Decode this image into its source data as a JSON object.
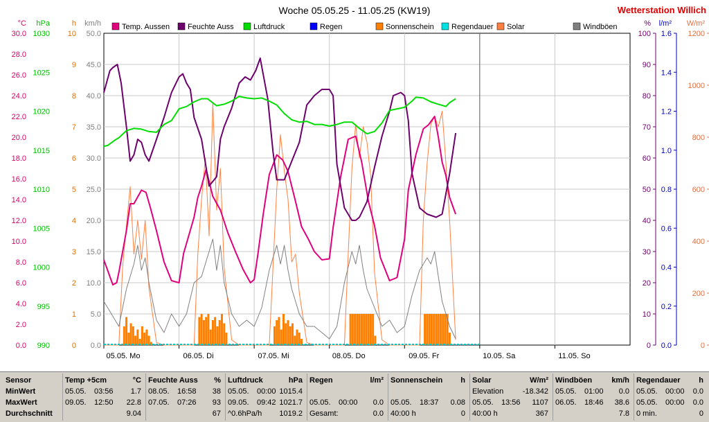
{
  "header": {
    "title": "Woche 05.05.25 - 11.05.25 (KW19)",
    "station": "Wetterstation Willich",
    "station_color": "#e00000"
  },
  "chart_data": {
    "type": "line",
    "x_ticks": [
      "05.05. Mo",
      "06.05. Di",
      "07.05. Mi",
      "08.05. Do",
      "09.05. Fr",
      "10.05. Sa",
      "11.05. So"
    ],
    "x_range_days": [
      0,
      7
    ],
    "data_end_day": 5,
    "axes": [
      {
        "unit": "°C",
        "side": "left",
        "color": "#d8006c",
        "min": 0,
        "max": 30,
        "ticks": [
          "0.0",
          "2.0",
          "4.0",
          "6.0",
          "8.0",
          "10.0",
          "12.0",
          "14.0",
          "16.0",
          "18.0",
          "20.0",
          "22.0",
          "24.0",
          "26.0",
          "28.0",
          "30.0"
        ]
      },
      {
        "unit": "hPa",
        "side": "left",
        "color": "#00c000",
        "min": 990,
        "max": 1030,
        "ticks": [
          "990",
          "995",
          "1000",
          "1005",
          "1010",
          "1015",
          "1020",
          "1025",
          "1030"
        ]
      },
      {
        "unit": "h",
        "side": "left",
        "color": "#e07000",
        "min": 0,
        "max": 10,
        "ticks": [
          "0",
          "1",
          "2",
          "3",
          "4",
          "5",
          "6",
          "7",
          "8",
          "9",
          "10"
        ]
      },
      {
        "unit": "km/h",
        "side": "left",
        "color": "#808080",
        "min": 0,
        "max": 50,
        "ticks": [
          "0.0",
          "5.0",
          "10.0",
          "15.0",
          "20.0",
          "25.0",
          "30.0",
          "35.0",
          "40.0",
          "45.0",
          "50.0"
        ]
      },
      {
        "unit": "%",
        "side": "right",
        "color": "#6c006c",
        "min": 0,
        "max": 100,
        "ticks": [
          "0",
          "10",
          "20",
          "30",
          "40",
          "50",
          "60",
          "70",
          "80",
          "90",
          "100"
        ]
      },
      {
        "unit": "l/m²",
        "side": "right",
        "color": "#0000c0",
        "min": 0,
        "max": 1.6,
        "ticks": [
          "0.0",
          "0.2",
          "0.4",
          "0.6",
          "0.8",
          "1.0",
          "1.2",
          "1.4",
          "1.6"
        ]
      },
      {
        "unit": "W/m²",
        "side": "right",
        "color": "#e07040",
        "min": 0,
        "max": 1200,
        "ticks": [
          "0",
          "200",
          "400",
          "600",
          "800",
          "1000",
          "1200"
        ]
      }
    ],
    "legend": [
      {
        "name": "Temp. Aussen",
        "color": "#e0007c"
      },
      {
        "name": "Feuchte Auss",
        "color": "#6c006c"
      },
      {
        "name": "Luftdruck",
        "color": "#00dd00"
      },
      {
        "name": "Regen",
        "color": "#0000ff"
      },
      {
        "name": "Sonnenschein",
        "color": "#ff8000"
      },
      {
        "name": "Regendauer",
        "color": "#00e0e0"
      },
      {
        "name": "Solar",
        "color": "#ff8040"
      },
      {
        "name": "Windböen",
        "color": "#808080"
      }
    ],
    "series": [
      {
        "name": "Temp. Aussen",
        "axis": "°C",
        "color": "#e0007c",
        "x": [
          0,
          0.06,
          0.12,
          0.17,
          0.2,
          0.3,
          0.35,
          0.4,
          0.5,
          0.56,
          0.62,
          0.7,
          0.8,
          0.9,
          1.0,
          1.06,
          1.2,
          1.25,
          1.3,
          1.36,
          1.45,
          1.55,
          1.65,
          1.75,
          1.85,
          1.95,
          2.0,
          2.05,
          2.12,
          2.2,
          2.3,
          2.38,
          2.45,
          2.55,
          2.63,
          2.72,
          2.8,
          2.9,
          3.0,
          3.05,
          3.15,
          3.25,
          3.35,
          3.43,
          3.52,
          3.6,
          3.68,
          3.8,
          3.9,
          4.0,
          4.05,
          4.15,
          4.25,
          4.32,
          4.4,
          4.45,
          4.5,
          4.55,
          4.6,
          4.68
        ],
        "values": [
          8.2,
          7.0,
          5.8,
          6.0,
          7.0,
          11.0,
          13.6,
          13.6,
          14.9,
          14.7,
          13.2,
          11.0,
          8.0,
          6.2,
          6.0,
          8.8,
          12.3,
          14.2,
          15.3,
          16.9,
          14.3,
          13.0,
          10.8,
          9.0,
          7.3,
          6.0,
          6.3,
          8.8,
          12.6,
          16.4,
          18.3,
          17.8,
          16.7,
          13.8,
          11.4,
          10.2,
          9.0,
          8.2,
          8.3,
          11.3,
          16.2,
          19.8,
          20.1,
          17.6,
          13.8,
          11.5,
          8.4,
          6.2,
          6.5,
          10.2,
          14.9,
          18.3,
          20.8,
          21.2,
          22.0,
          20.0,
          17.6,
          16.3,
          14.2,
          12.6
        ]
      },
      {
        "name": "Feuchte Auss",
        "axis": "%",
        "color": "#6c006c",
        "x": [
          0,
          0.08,
          0.12,
          0.18,
          0.23,
          0.3,
          0.35,
          0.4,
          0.45,
          0.5,
          0.55,
          0.6,
          0.7,
          0.8,
          0.9,
          1.0,
          1.05,
          1.1,
          1.15,
          1.2,
          1.3,
          1.4,
          1.5,
          1.55,
          1.6,
          1.7,
          1.8,
          1.88,
          1.95,
          2.02,
          2.08,
          2.18,
          2.25,
          2.3,
          2.4,
          2.5,
          2.6,
          2.7,
          2.8,
          2.9,
          3.0,
          3.05,
          3.1,
          3.2,
          3.3,
          3.35,
          3.4,
          3.5,
          3.6,
          3.7,
          3.8,
          3.85,
          3.95,
          4.0,
          4.05,
          4.1,
          4.2,
          4.3,
          4.42,
          4.5,
          4.6,
          4.68
        ],
        "values": [
          81,
          88,
          89,
          90,
          84,
          70,
          59,
          61,
          66,
          65,
          61,
          59,
          66,
          73,
          81,
          86,
          87,
          84,
          82,
          73,
          66,
          51,
          54,
          66,
          70,
          76,
          84,
          86,
          85,
          88,
          92,
          79,
          62,
          53,
          53,
          59,
          65,
          77,
          80,
          82,
          82,
          80,
          58,
          44,
          40,
          40,
          41,
          46,
          57,
          67,
          75,
          80,
          81,
          80,
          72,
          55,
          44,
          42,
          41,
          42,
          55,
          68
        ]
      },
      {
        "name": "Luftdruck",
        "axis": "hPa",
        "color": "#00dd00",
        "x": [
          0,
          0.05,
          0.15,
          0.2,
          0.3,
          0.4,
          0.5,
          0.6,
          0.7,
          0.8,
          0.9,
          1.0,
          1.1,
          1.2,
          1.3,
          1.38,
          1.46,
          1.5,
          1.6,
          1.7,
          1.8,
          1.9,
          2.0,
          2.1,
          2.2,
          2.3,
          2.4,
          2.5,
          2.6,
          2.7,
          2.8,
          2.9,
          3.0,
          3.1,
          3.2,
          3.3,
          3.4,
          3.5,
          3.6,
          3.7,
          3.8,
          3.9,
          4.0,
          4.1,
          4.15,
          4.25,
          4.35,
          4.45,
          4.55,
          4.6,
          4.68
        ],
        "values": [
          1015.5,
          1015.6,
          1016.3,
          1016.6,
          1017.5,
          1017.8,
          1017.7,
          1017.4,
          1017.3,
          1018.3,
          1018.8,
          1020.3,
          1020.6,
          1021.2,
          1021.6,
          1021.6,
          1021.0,
          1020.7,
          1020.9,
          1021.3,
          1021.9,
          1021.7,
          1021.6,
          1021.7,
          1021.3,
          1020.8,
          1019.7,
          1018.9,
          1018.6,
          1018.7,
          1018.3,
          1018.3,
          1018.1,
          1018.3,
          1018.6,
          1018.6,
          1017.8,
          1017.1,
          1017.4,
          1018.5,
          1020.1,
          1020.3,
          1020.5,
          1021.3,
          1021.8,
          1021.7,
          1021.2,
          1020.9,
          1020.6,
          1021.1,
          1021.6
        ]
      },
      {
        "name": "Windböen",
        "axis": "km/h",
        "color": "#808080",
        "x": [
          0,
          0.1,
          0.2,
          0.3,
          0.4,
          0.45,
          0.5,
          0.55,
          0.6,
          0.7,
          0.8,
          0.9,
          1.0,
          1.1,
          1.2,
          1.3,
          1.4,
          1.45,
          1.5,
          1.55,
          1.6,
          1.7,
          1.8,
          1.9,
          2.0,
          2.1,
          2.2,
          2.3,
          2.35,
          2.4,
          2.45,
          2.5,
          2.6,
          2.7,
          2.8,
          2.9,
          3.0,
          3.1,
          3.2,
          3.3,
          3.35,
          3.4,
          3.45,
          3.5,
          3.6,
          3.7,
          3.8,
          3.9,
          4.0,
          4.1,
          4.2,
          4.3,
          4.35,
          4.4,
          4.45,
          4.5,
          4.6,
          4.68
        ],
        "values": [
          7,
          5,
          3,
          9,
          13,
          16,
          12,
          14,
          10,
          4,
          2,
          5,
          3,
          5,
          10,
          11,
          15,
          17,
          12,
          16,
          10,
          5,
          3,
          4,
          3,
          6,
          12,
          16,
          13,
          16,
          12,
          9,
          5,
          3,
          3,
          2,
          1,
          3,
          10,
          15,
          13,
          16,
          12,
          9,
          6,
          3,
          4,
          2,
          3,
          8,
          12,
          14,
          13,
          15,
          11,
          7,
          3,
          1
        ]
      }
    ],
    "sunshine": {
      "name": "Sonnenschein",
      "axis": "h",
      "color": "#ff8000",
      "x": [
        0.27,
        0.3,
        0.33,
        0.36,
        0.39,
        0.42,
        0.45,
        0.48,
        0.51,
        0.54,
        0.57,
        0.6,
        0.63,
        1.27,
        1.3,
        1.33,
        1.36,
        1.39,
        1.42,
        1.45,
        1.48,
        1.51,
        1.54,
        1.57,
        1.6,
        1.63,
        2.27,
        2.3,
        2.33,
        2.36,
        2.39,
        2.42,
        2.45,
        2.48,
        2.51,
        2.54,
        2.57,
        2.6,
        2.63,
        3.28,
        3.31,
        3.34,
        3.37,
        3.4,
        3.43,
        3.46,
        3.49,
        3.52,
        3.55,
        3.58,
        3.61,
        4.27,
        4.3,
        4.33,
        4.36,
        4.39,
        4.42,
        4.45,
        4.48,
        4.51,
        4.54,
        4.57,
        4.6
      ],
      "values": [
        0.6,
        0.9,
        0.4,
        0.7,
        0.6,
        0.3,
        0.5,
        0.2,
        0.6,
        0.4,
        0.5,
        0.3,
        0.1,
        0.9,
        1.0,
        0.8,
        0.9,
        1.0,
        0.5,
        0.8,
        0.9,
        0.6,
        0.8,
        1.0,
        0.7,
        0.4,
        0.6,
        0.8,
        0.9,
        0.5,
        1.0,
        0.7,
        0.8,
        0.6,
        0.7,
        0.3,
        0.5,
        0.4,
        0.2,
        1.0,
        1.0,
        1.0,
        1.0,
        1.0,
        1.0,
        1.0,
        1.0,
        1.0,
        1.0,
        1.0,
        0.3,
        1.0,
        1.0,
        1.0,
        1.0,
        1.0,
        1.0,
        1.0,
        1.0,
        1.0,
        1.0,
        1.0,
        0.4
      ]
    },
    "solar": {
      "name": "Solar",
      "axis": "W/m²",
      "color": "#ff8040",
      "x": [
        0,
        0.2,
        0.25,
        0.3,
        0.35,
        0.4,
        0.45,
        0.5,
        0.55,
        0.6,
        0.7,
        0.8,
        1.0,
        1.2,
        1.25,
        1.3,
        1.35,
        1.4,
        1.45,
        1.5,
        1.55,
        1.6,
        1.7,
        1.8,
        2.0,
        2.2,
        2.25,
        2.3,
        2.35,
        2.4,
        2.45,
        2.5,
        2.55,
        2.6,
        2.7,
        2.8,
        3.0,
        3.2,
        3.25,
        3.3,
        3.35,
        3.4,
        3.45,
        3.5,
        3.55,
        3.6,
        3.7,
        3.8,
        4.0,
        4.2,
        4.25,
        4.3,
        4.35,
        4.4,
        4.45,
        4.5,
        4.55,
        4.6,
        4.68
      ],
      "values": [
        0,
        0,
        300,
        460,
        610,
        350,
        480,
        330,
        480,
        220,
        10,
        0,
        0,
        0,
        350,
        560,
        720,
        420,
        930,
        520,
        680,
        300,
        20,
        0,
        0,
        0,
        300,
        600,
        810,
        670,
        560,
        320,
        350,
        200,
        10,
        0,
        0,
        0,
        350,
        680,
        850,
        720,
        840,
        780,
        650,
        280,
        20,
        0,
        0,
        0,
        480,
        700,
        850,
        880,
        840,
        900,
        700,
        480,
        20
      ]
    },
    "rain": {
      "name": "Regen",
      "axis": "l/m²",
      "total": 0.0
    },
    "rain_duration": {
      "name": "Regendauer",
      "total_min": 0
    }
  },
  "stats": {
    "sensor": {
      "header": "Sensor",
      "rows": [
        "MinWert",
        "MaxWert",
        "Durchschnitt"
      ]
    },
    "temp": {
      "header": "Temp +5cm",
      "unit": "°C",
      "rows": [
        {
          "date": "05.05.",
          "time": "03:56",
          "value": "1.7"
        },
        {
          "date": "09.05.",
          "time": "12:50",
          "value": "22.8"
        },
        {
          "date": "",
          "time": "",
          "value": "9.04"
        }
      ]
    },
    "feuchte": {
      "header": "Feuchte Auss",
      "unit": "%",
      "rows": [
        {
          "date": "08.05.",
          "time": "16:58",
          "value": "38"
        },
        {
          "date": "07.05.",
          "time": "07:26",
          "value": "93"
        },
        {
          "date": "",
          "time": "",
          "value": "67"
        }
      ]
    },
    "luftdruck": {
      "header": "Luftdruck",
      "unit": "hPa",
      "rows": [
        {
          "date": "05.05.",
          "time": "00:00",
          "value": "1015.4"
        },
        {
          "date": "09.05.",
          "time": "09:42",
          "value": "1021.7"
        },
        {
          "date": "^0.6hPa/h",
          "time": "",
          "value": "1019.2"
        }
      ]
    },
    "regen": {
      "header": "Regen",
      "unit": "l/m²",
      "rows": [
        {
          "date": "",
          "time": "",
          "value": ""
        },
        {
          "date": "05.05.",
          "time": "00:00",
          "value": "0.0"
        },
        {
          "date": "Gesamt:",
          "time": "",
          "value": "0.0"
        }
      ]
    },
    "sonnenschein": {
      "header": "Sonnenschein",
      "unit": "h",
      "rows": [
        {
          "date": "",
          "time": "",
          "value": ""
        },
        {
          "date": "05.05.",
          "time": "18:37",
          "value": "0.08"
        },
        {
          "date": "40:00 h",
          "time": "",
          "value": "0"
        }
      ]
    },
    "solar": {
      "header": "Solar",
      "unit": "W/m²",
      "rows": [
        {
          "date": "Elevation",
          "time": "",
          "value": "-18.342"
        },
        {
          "date": "05.05.",
          "time": "13:56",
          "value": "1107"
        },
        {
          "date": "40:00 h",
          "time": "",
          "value": "367"
        }
      ]
    },
    "windboeen": {
      "header": "Windböen",
      "unit": "km/h",
      "rows": [
        {
          "date": "05.05.",
          "time": "01:00",
          "value": "0.0"
        },
        {
          "date": "06.05.",
          "time": "18:46",
          "value": "38.6"
        },
        {
          "date": "",
          "time": "",
          "value": "7.8"
        }
      ]
    },
    "regendauer": {
      "header": "Regendauer",
      "unit": "h",
      "rows": [
        {
          "date": "05.05.",
          "time": "00:00",
          "value": "0.0"
        },
        {
          "date": "05.05.",
          "time": "00:00",
          "value": "0.0"
        },
        {
          "date": "0 min.",
          "time": "",
          "value": "0"
        }
      ]
    }
  }
}
